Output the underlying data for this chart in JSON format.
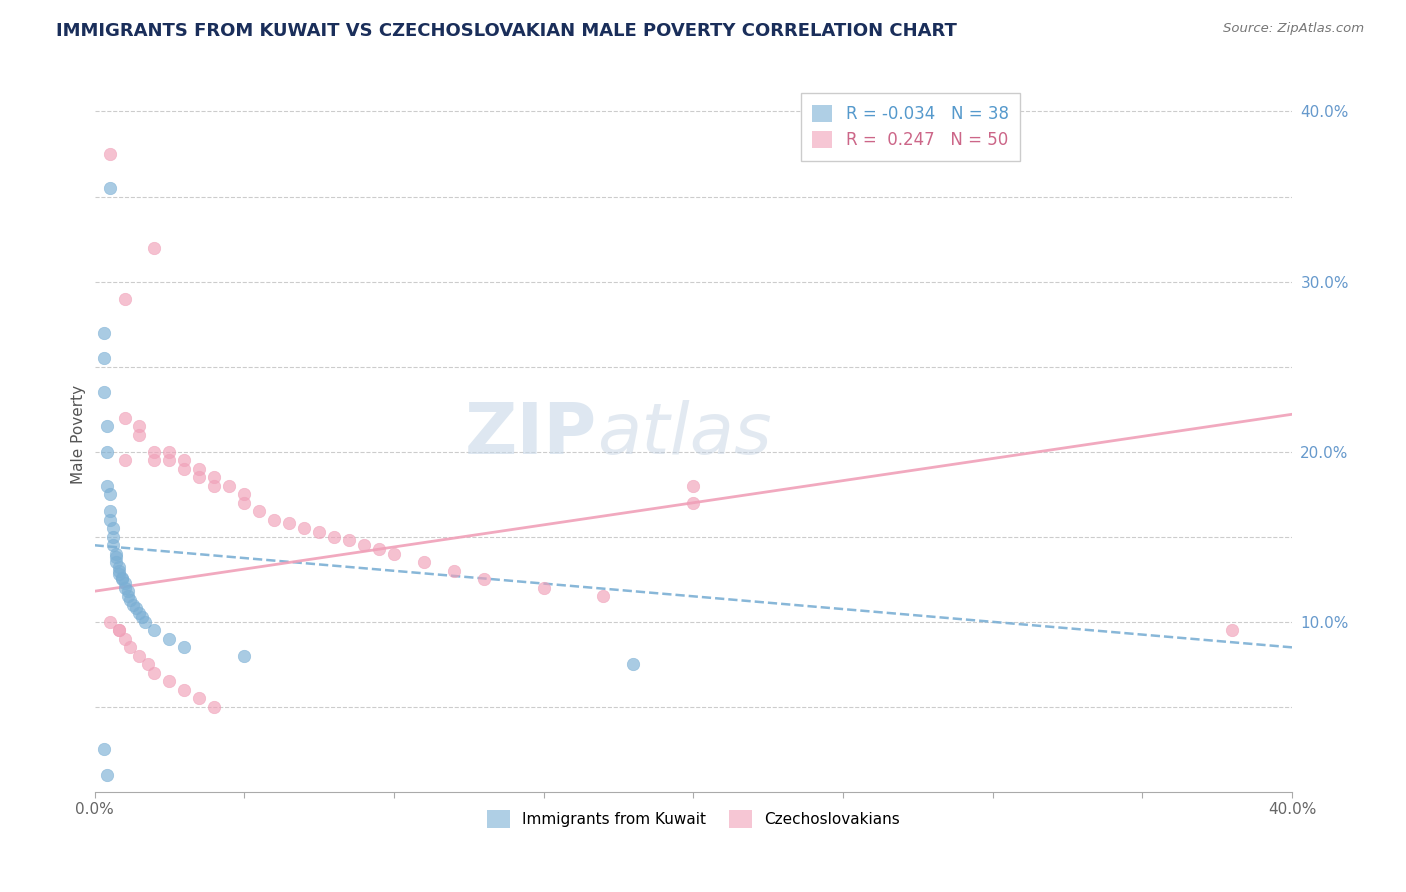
{
  "title": "IMMIGRANTS FROM KUWAIT VS CZECHOSLOVAKIAN MALE POVERTY CORRELATION CHART",
  "source": "Source: ZipAtlas.com",
  "ylabel": "Male Poverty",
  "xlim": [
    0.0,
    0.4
  ],
  "ylim": [
    0.0,
    0.42
  ],
  "x_ticks": [
    0.0,
    0.05,
    0.1,
    0.15,
    0.2,
    0.25,
    0.3,
    0.35,
    0.4
  ],
  "x_tick_labels": [
    "0.0%",
    "",
    "",
    "",
    "",
    "",
    "",
    "",
    "40.0%"
  ],
  "y_ticks": [
    0.05,
    0.1,
    0.15,
    0.2,
    0.25,
    0.3,
    0.35,
    0.4
  ],
  "y_tick_labels": [
    "",
    "10.0%",
    "",
    "20.0%",
    "",
    "30.0%",
    "",
    "40.0%"
  ],
  "legend_r1": "R = -0.034",
  "legend_n1": "N = 38",
  "legend_r2": "R =  0.247",
  "legend_n2": "N = 50",
  "color_blue": "#7bafd4",
  "color_pink": "#f0a0b8",
  "title_color": "#1a2e5a",
  "source_color": "#777777",
  "watermark_zip": "ZIP",
  "watermark_atlas": "atlas",
  "kuwait_x": [
    0.005,
    0.003,
    0.003,
    0.003,
    0.004,
    0.004,
    0.004,
    0.005,
    0.005,
    0.005,
    0.006,
    0.006,
    0.006,
    0.007,
    0.007,
    0.007,
    0.008,
    0.008,
    0.008,
    0.009,
    0.009,
    0.01,
    0.01,
    0.011,
    0.011,
    0.012,
    0.013,
    0.014,
    0.015,
    0.016,
    0.017,
    0.02,
    0.025,
    0.03,
    0.05,
    0.18,
    0.003,
    0.004
  ],
  "kuwait_y": [
    0.355,
    0.27,
    0.255,
    0.235,
    0.215,
    0.2,
    0.18,
    0.175,
    0.165,
    0.16,
    0.155,
    0.15,
    0.145,
    0.14,
    0.138,
    0.135,
    0.132,
    0.13,
    0.128,
    0.126,
    0.125,
    0.123,
    0.12,
    0.118,
    0.115,
    0.113,
    0.11,
    0.108,
    0.105,
    0.103,
    0.1,
    0.095,
    0.09,
    0.085,
    0.08,
    0.075,
    0.025,
    0.01
  ],
  "czech_x": [
    0.005,
    0.02,
    0.01,
    0.01,
    0.01,
    0.015,
    0.015,
    0.02,
    0.02,
    0.025,
    0.025,
    0.03,
    0.03,
    0.035,
    0.035,
    0.04,
    0.04,
    0.045,
    0.05,
    0.05,
    0.055,
    0.06,
    0.065,
    0.07,
    0.075,
    0.08,
    0.085,
    0.09,
    0.095,
    0.1,
    0.11,
    0.12,
    0.13,
    0.15,
    0.17,
    0.2,
    0.005,
    0.008,
    0.008,
    0.01,
    0.012,
    0.015,
    0.018,
    0.02,
    0.025,
    0.03,
    0.035,
    0.04,
    0.2,
    0.38
  ],
  "czech_y": [
    0.375,
    0.32,
    0.29,
    0.22,
    0.195,
    0.215,
    0.21,
    0.2,
    0.195,
    0.2,
    0.195,
    0.195,
    0.19,
    0.19,
    0.185,
    0.185,
    0.18,
    0.18,
    0.175,
    0.17,
    0.165,
    0.16,
    0.158,
    0.155,
    0.153,
    0.15,
    0.148,
    0.145,
    0.143,
    0.14,
    0.135,
    0.13,
    0.125,
    0.12,
    0.115,
    0.17,
    0.1,
    0.095,
    0.095,
    0.09,
    0.085,
    0.08,
    0.075,
    0.07,
    0.065,
    0.06,
    0.055,
    0.05,
    0.18,
    0.095
  ],
  "kuwait_trend_x": [
    0.0,
    0.4
  ],
  "kuwait_trend_y": [
    0.145,
    0.085
  ],
  "czech_trend_x": [
    0.0,
    0.4
  ],
  "czech_trend_y": [
    0.118,
    0.222
  ]
}
